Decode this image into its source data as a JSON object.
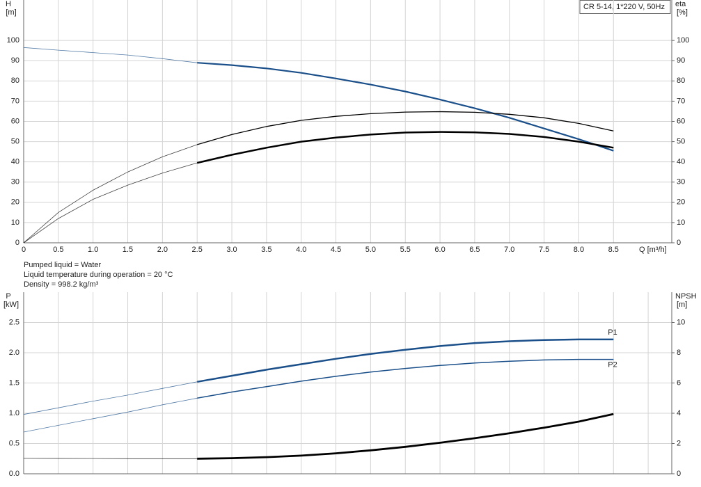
{
  "model": "CR 5-14, 1*220 V, 50Hz",
  "notes": [
    "Pumped liquid = Water",
    "Liquid temperature during operation = 20 °C",
    "Density = 998.2 kg/m³"
  ],
  "chart_data": [
    {
      "type": "line",
      "ylabel": "H",
      "yunit": "[m]",
      "y2label": "eta",
      "y2unit": "[%]",
      "xlabel": "Q [m³/h]",
      "xlim": [
        0,
        9.34
      ],
      "ylim": [
        0,
        120
      ],
      "y2lim": [
        0,
        120
      ],
      "grid": true,
      "bold_from": 2.5,
      "show_xtick_labels": true,
      "xticks": [
        0,
        0.5,
        {
          "value": 1,
          "label": "1.0"
        },
        1.5,
        {
          "value": 2,
          "label": "2.0"
        },
        2.5,
        {
          "value": 3,
          "label": "3.0"
        },
        3.5,
        {
          "value": 4,
          "label": "4.0"
        },
        4.5,
        {
          "value": 5,
          "label": "5.0"
        },
        5.5,
        {
          "value": 6,
          "label": "6.0"
        },
        6.5,
        {
          "value": 7,
          "label": "7.0"
        },
        7.5,
        {
          "value": 8,
          "label": "8.0"
        },
        8.5
      ],
      "yticks": [
        0,
        10,
        20,
        30,
        40,
        50,
        60,
        70,
        80,
        90,
        100
      ],
      "y2ticks": [
        0,
        10,
        20,
        30,
        40,
        50,
        60,
        70,
        80,
        90,
        100
      ],
      "x": [
        0,
        0.5,
        1,
        1.5,
        2,
        2.5,
        3,
        3.5,
        4,
        4.5,
        5,
        5.5,
        6,
        6.5,
        7,
        7.5,
        8,
        8.5
      ],
      "series": [
        {
          "color": "#1a4f8a",
          "line_width": 2.2,
          "values": [
            96.5,
            95.2,
            94,
            92.8,
            91,
            89,
            87.8,
            86.2,
            84,
            81.2,
            78.2,
            74.8,
            70.8,
            66.5,
            61.8,
            56.5,
            51.2,
            45.5
          ]
        },
        {
          "color": "#000000",
          "line_width": 1.3,
          "axis": "y2",
          "values": [
            0,
            15,
            26,
            35,
            42.5,
            48.5,
            53.5,
            57.5,
            60.5,
            62.5,
            63.8,
            64.6,
            64.8,
            64.5,
            63.5,
            61.8,
            59,
            55.3
          ]
        },
        {
          "color": "#000000",
          "line_width": 2.5,
          "axis": "y2",
          "values": [
            0,
            12,
            21.5,
            28.5,
            34.5,
            39.5,
            43.5,
            47,
            50,
            52,
            53.5,
            54.5,
            54.8,
            54.6,
            53.8,
            52.3,
            50,
            47
          ]
        }
      ]
    },
    {
      "type": "line",
      "ylabel": "P",
      "yunit": "[kW]",
      "y2label": "NPSH",
      "y2unit": "[m]",
      "xlim": [
        0,
        9.34
      ],
      "ylim": [
        0,
        3
      ],
      "y2lim": [
        0,
        12
      ],
      "grid": true,
      "bold_from": 2.5,
      "show_xtick_labels": false,
      "xticks": [
        0,
        0.5,
        1,
        1.5,
        2,
        2.5,
        3,
        3.5,
        4,
        4.5,
        5,
        5.5,
        6,
        6.5,
        7,
        7.5,
        8,
        8.5,
        9
      ],
      "yticks": [
        {
          "value": 0,
          "label": "0.0"
        },
        0.5,
        {
          "value": 1,
          "label": "1.0"
        },
        1.5,
        {
          "value": 2,
          "label": "2.0"
        },
        2.5
      ],
      "y2ticks": [
        0,
        2,
        4,
        6,
        8,
        10
      ],
      "x": [
        0,
        0.5,
        1,
        1.5,
        2,
        2.5,
        3,
        3.5,
        4,
        4.5,
        5,
        5.5,
        6,
        6.5,
        7,
        7.5,
        8,
        8.5
      ],
      "series": [
        {
          "name": "P1",
          "color": "#1a4f8a",
          "line_width": 2.5,
          "values": [
            0.98,
            1.09,
            1.2,
            1.3,
            1.41,
            1.52,
            1.62,
            1.72,
            1.81,
            1.9,
            1.98,
            2.05,
            2.11,
            2.16,
            2.19,
            2.21,
            2.22,
            2.22
          ]
        },
        {
          "name": "P2",
          "color": "#1a4f8a",
          "line_width": 1.5,
          "values": [
            0.69,
            0.8,
            0.91,
            1.02,
            1.14,
            1.25,
            1.35,
            1.44,
            1.53,
            1.61,
            1.68,
            1.74,
            1.79,
            1.83,
            1.86,
            1.88,
            1.89,
            1.89
          ]
        },
        {
          "color": "#000000",
          "line_width": 2.8,
          "axis": "y2",
          "values": [
            1.03,
            1.02,
            1.01,
            1,
            1,
            1,
            1.03,
            1.1,
            1.2,
            1.35,
            1.55,
            1.78,
            2.05,
            2.35,
            2.68,
            3.05,
            3.45,
            3.95
          ]
        }
      ]
    }
  ]
}
